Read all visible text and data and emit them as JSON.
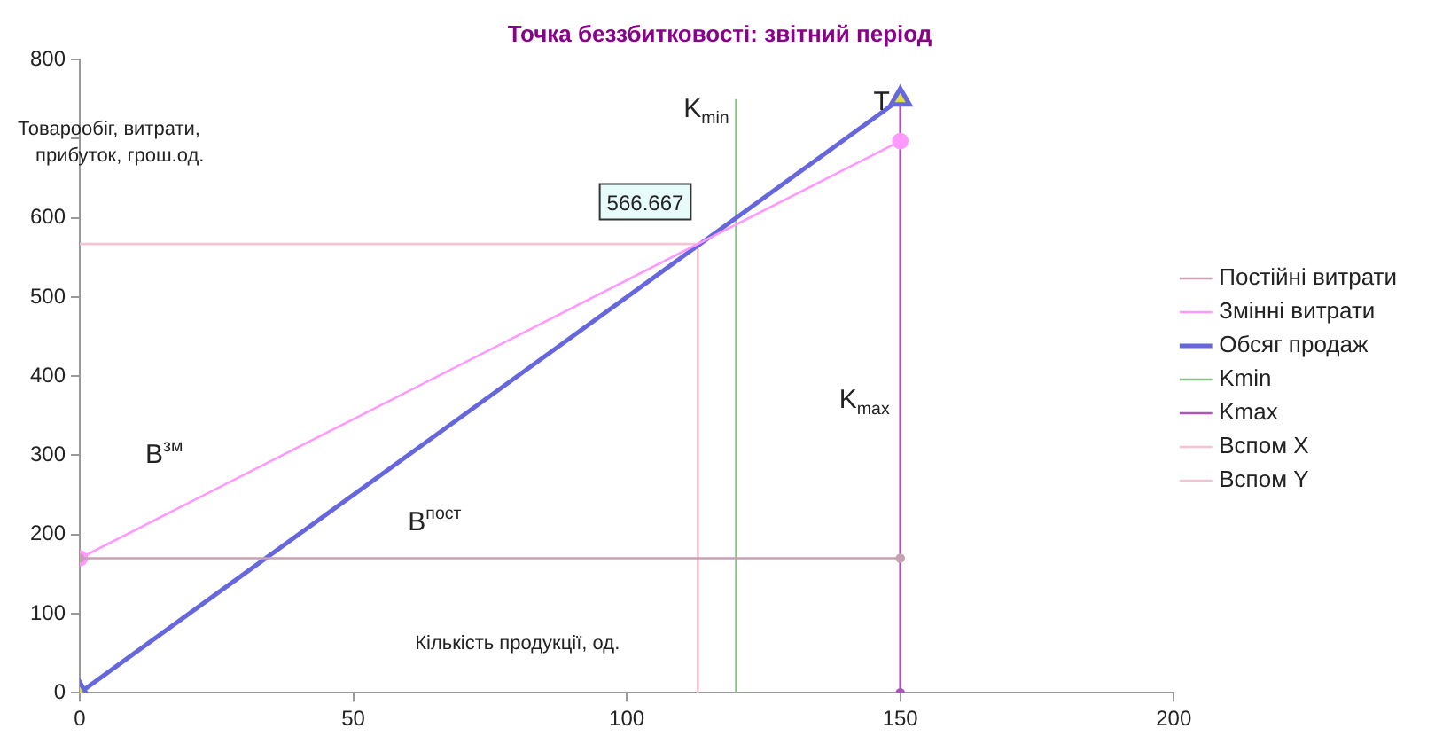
{
  "chart_data": {
    "type": "line",
    "title": "Точка беззбитковості: звітний період",
    "xlabel": "Кількість продукції, од.",
    "ylabel": "Товарообіг, витрати, прибуток, грош.од.",
    "xlim": [
      0,
      200
    ],
    "xticks": [
      0,
      50,
      100,
      150,
      200
    ],
    "ylim": [
      0,
      800
    ],
    "yticks": [
      0,
      100,
      200,
      300,
      400,
      500,
      600,
      {
        "value": 700,
        "label": null
      },
      800
    ],
    "grid": false,
    "legend": "right",
    "series": [
      {
        "name": "Постійні витрати",
        "color": "#c8a0b4",
        "x": [
          0,
          150
        ],
        "values": [
          170,
          170
        ],
        "marker": "circle"
      },
      {
        "name": "Змінні витрати",
        "color": "#ff99ff",
        "x": [
          0,
          150
        ],
        "values": [
          170,
          697
        ],
        "marker": "circle"
      },
      {
        "name": "Обсяг продаж",
        "color": "#6666dd",
        "x": [
          0,
          150
        ],
        "values": [
          0,
          750
        ],
        "marker": "triangle"
      },
      {
        "name": "Kmin",
        "color": "#88c088",
        "x": [
          120,
          120
        ],
        "values": [
          0,
          750
        ],
        "marker": "none"
      },
      {
        "name": "Kmax",
        "color": "#aa55bb",
        "x": [
          150,
          150
        ],
        "values": [
          0,
          750
        ],
        "marker": "circle"
      },
      {
        "name": "Вспом X",
        "color": "#f4c4d4",
        "x": [
          0,
          113
        ],
        "values": [
          567,
          567
        ],
        "marker": "none"
      },
      {
        "name": "Вспом Y",
        "color": "#f4c4d4",
        "x": [
          113,
          113
        ],
        "values": [
          0,
          567
        ],
        "marker": "none"
      }
    ],
    "annotations": [
      {
        "text": "566.667",
        "x": 113,
        "y": 566.667
      },
      {
        "text": "T",
        "x": 150,
        "y": 750
      },
      {
        "text": "K$_{min}$",
        "x": 120,
        "y": 750
      },
      {
        "text": "K$_{max}$",
        "x": 150,
        "y": 360
      },
      "В$^{зм}$",
      "В$^{пост}$"
    ]
  }
}
